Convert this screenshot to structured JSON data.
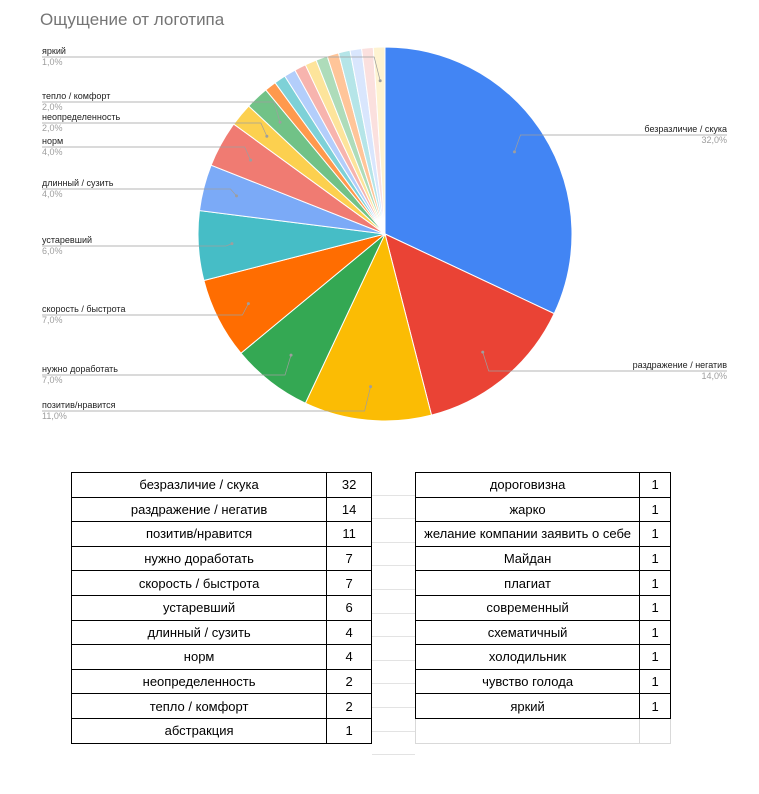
{
  "chart_title": "Ощущение от логотипа",
  "chart_data": {
    "type": "pie",
    "title": "Ощущение от логотипа",
    "slices": [
      {
        "label": "безразличие / скука",
        "value": 32,
        "pct": "32,0%",
        "color": "#4285f4"
      },
      {
        "label": "раздражение / негатив",
        "value": 14,
        "pct": "14,0%",
        "color": "#ea4335"
      },
      {
        "label": "позитив/нравится",
        "value": 11,
        "pct": "11,0%",
        "color": "#fbbc04"
      },
      {
        "label": "нужно доработать",
        "value": 7,
        "pct": "7,0%",
        "color": "#34a853"
      },
      {
        "label": "скорость / быстрота",
        "value": 7,
        "pct": "7,0%",
        "color": "#ff6d01"
      },
      {
        "label": "устаревший",
        "value": 6,
        "pct": "6,0%",
        "color": "#46bdc6"
      },
      {
        "label": "длинный / сузить",
        "value": 4,
        "pct": "4,0%",
        "color": "#7baaf7"
      },
      {
        "label": "норм",
        "value": 4,
        "pct": "4,0%",
        "color": "#f07b72"
      },
      {
        "label": "неопределенность",
        "value": 2,
        "pct": "2,0%",
        "color": "#fcd04f"
      },
      {
        "label": "тепло / комфорт",
        "value": 2,
        "pct": "2,0%",
        "color": "#71c287"
      },
      {
        "label": "абстракция",
        "value": 1,
        "pct": "1,0%",
        "color": "#ff994d"
      },
      {
        "label": "дороговизна",
        "value": 1,
        "pct": "1,0%",
        "color": "#7ed1d7"
      },
      {
        "label": "жарко",
        "value": 1,
        "pct": "1,0%",
        "color": "#b3cefb"
      },
      {
        "label": "желание компании заявить о себе",
        "value": 1,
        "pct": "1,0%",
        "color": "#f7b4ae"
      },
      {
        "label": "Майдан",
        "value": 1,
        "pct": "1,0%",
        "color": "#fde49b"
      },
      {
        "label": "плагиат",
        "value": 1,
        "pct": "1,0%",
        "color": "#aedcba"
      },
      {
        "label": "современный",
        "value": 1,
        "pct": "1,0%",
        "color": "#ffc599"
      },
      {
        "label": "схематичный",
        "value": 1,
        "pct": "1,0%",
        "color": "#b5e5e8"
      },
      {
        "label": "холодильник",
        "value": 1,
        "pct": "1,0%",
        "color": "#d9e6fd"
      },
      {
        "label": "чувство голода",
        "value": 1,
        "pct": "1,0%",
        "color": "#fbe0de"
      },
      {
        "label": "яркий",
        "value": 1,
        "pct": "1,0%",
        "color": "#fef3d1"
      }
    ],
    "labeled": [
      {
        "label": "безразличие / скука",
        "pct": "32,0%",
        "side": "right"
      },
      {
        "label": "раздражение / негатив",
        "pct": "14,0%",
        "side": "right"
      },
      {
        "label": "яркий",
        "pct": "1,0%",
        "side": "left"
      },
      {
        "label": "тепло / комфорт",
        "pct": "2,0%",
        "side": "left"
      },
      {
        "label": "неопределенность",
        "pct": "2,0%",
        "side": "left"
      },
      {
        "label": "норм",
        "pct": "4,0%",
        "side": "left"
      },
      {
        "label": "длинный / сузить",
        "pct": "4,0%",
        "side": "left"
      },
      {
        "label": "устаревший",
        "pct": "6,0%",
        "side": "left"
      },
      {
        "label": "скорость / быстрота",
        "pct": "7,0%",
        "side": "left"
      },
      {
        "label": "нужно доработать",
        "pct": "7,0%",
        "side": "left"
      },
      {
        "label": "позитив/нравится",
        "pct": "11,0%",
        "side": "left"
      }
    ]
  },
  "table_left": [
    [
      "безразличие / скука",
      "32"
    ],
    [
      "раздражение / негатив",
      "14"
    ],
    [
      "позитив/нравится",
      "11"
    ],
    [
      "нужно доработать",
      "7"
    ],
    [
      "скорость / быстрота",
      "7"
    ],
    [
      "устаревший",
      "6"
    ],
    [
      "длинный / сузить",
      "4"
    ],
    [
      "норм",
      "4"
    ],
    [
      "неопределенность",
      "2"
    ],
    [
      "тепло / комфорт",
      "2"
    ],
    [
      "абстракция",
      "1"
    ]
  ],
  "table_right": [
    [
      "дороговизна",
      "1"
    ],
    [
      "жарко",
      "1"
    ],
    [
      "желание компании заявить о себе",
      "1"
    ],
    [
      "Майдан",
      "1"
    ],
    [
      "плагиат",
      "1"
    ],
    [
      "современный",
      "1"
    ],
    [
      "схематичный",
      "1"
    ],
    [
      "холодильник",
      "1"
    ],
    [
      "чувство голода",
      "1"
    ],
    [
      "яркий",
      "1"
    ]
  ]
}
